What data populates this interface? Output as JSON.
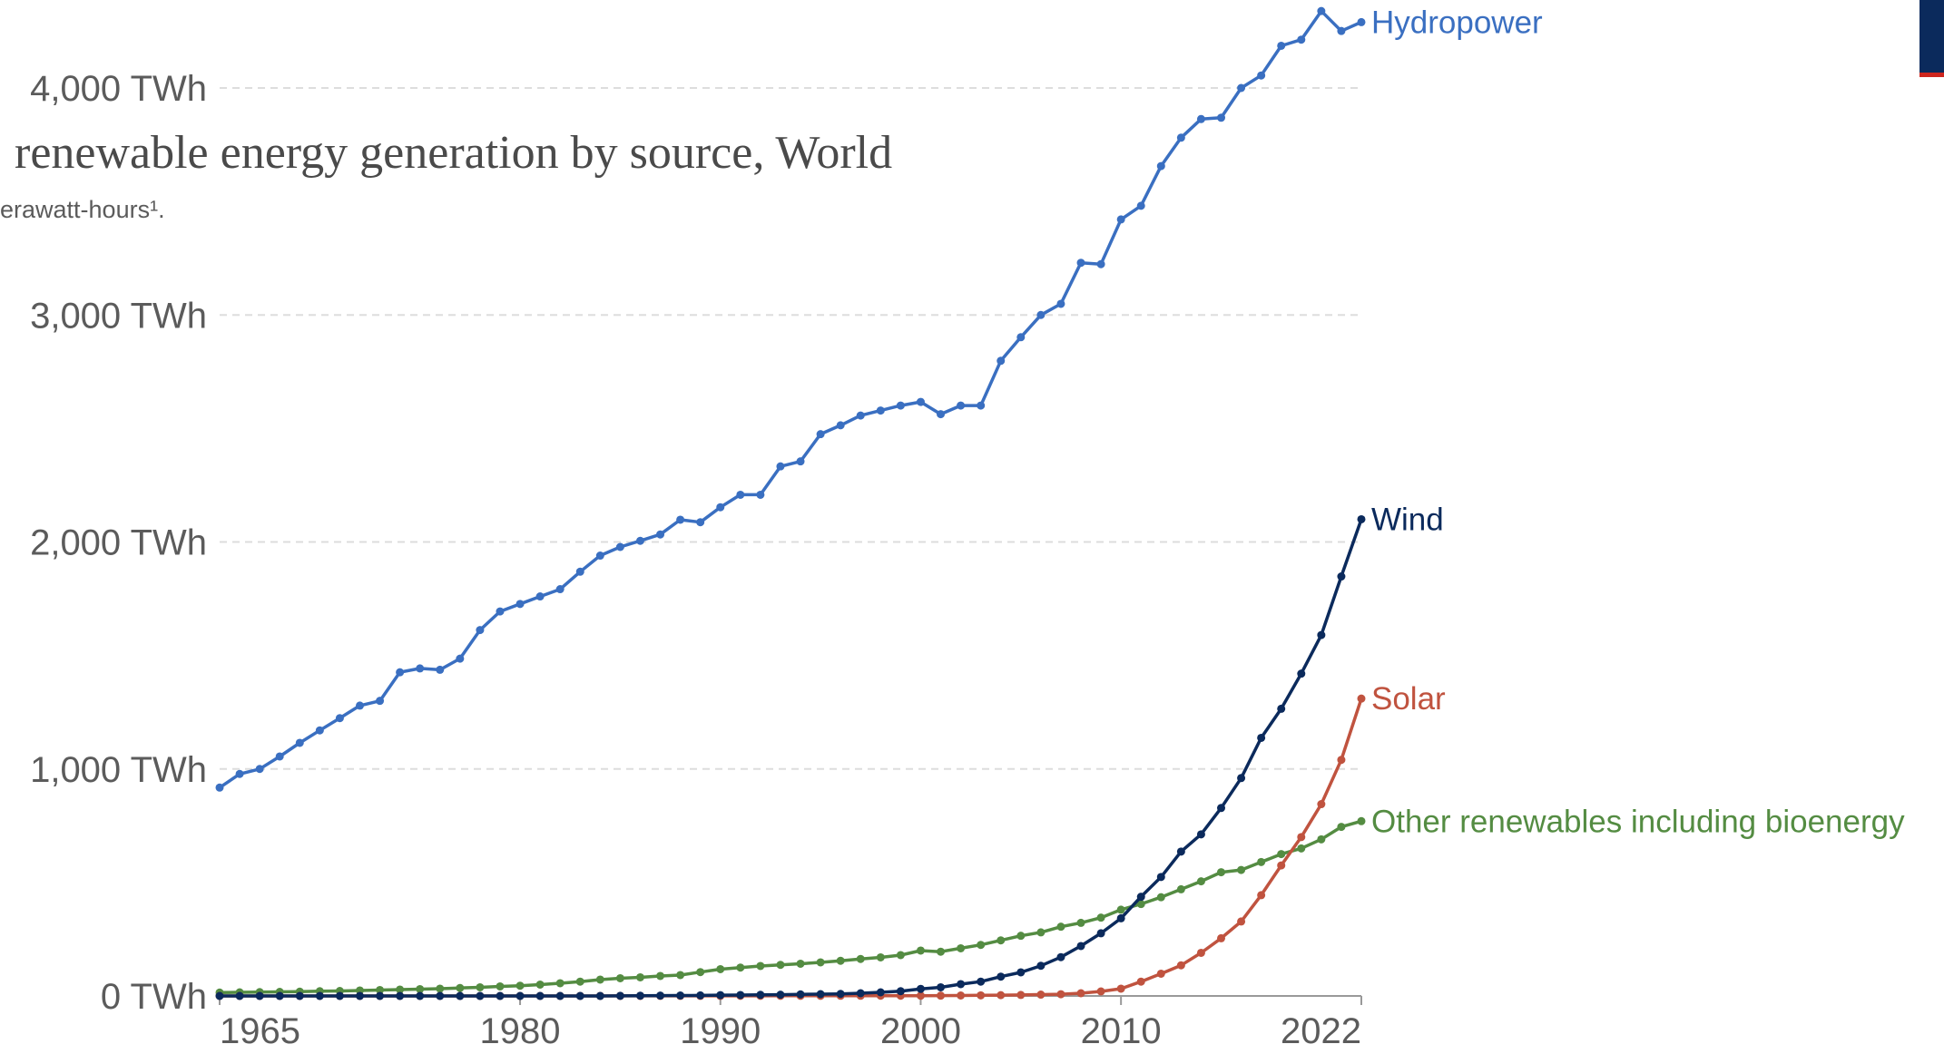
{
  "chart_data": {
    "type": "line",
    "title": "renewable energy generation by source, World",
    "subtitle": "erawatt-hours¹.",
    "x": [
      1965,
      1966,
      1967,
      1968,
      1969,
      1970,
      1971,
      1972,
      1973,
      1974,
      1975,
      1976,
      1977,
      1978,
      1979,
      1980,
      1981,
      1982,
      1983,
      1984,
      1985,
      1986,
      1987,
      1988,
      1989,
      1990,
      1991,
      1992,
      1993,
      1994,
      1995,
      1996,
      1997,
      1998,
      1999,
      2000,
      2001,
      2002,
      2003,
      2004,
      2005,
      2006,
      2007,
      2008,
      2009,
      2010,
      2011,
      2012,
      2013,
      2014,
      2015,
      2016,
      2017,
      2018,
      2019,
      2020,
      2021,
      2022
    ],
    "xlim": [
      1965,
      2022
    ],
    "xticks": [
      1965,
      1980,
      1990,
      2000,
      2010,
      2022
    ],
    "ylim": [
      0,
      4000
    ],
    "yticks": [
      {
        "value": 0,
        "label": "0 TWh"
      },
      {
        "value": 1000,
        "label": "1,000 TWh"
      },
      {
        "value": 2000,
        "label": "2,000 TWh"
      },
      {
        "value": 3000,
        "label": "3,000 TWh"
      },
      {
        "value": 4000,
        "label": "4,000 TWh"
      }
    ],
    "grid": true,
    "series": [
      {
        "name": "Hydropower",
        "color": "#3a6fc1",
        "values": [
          918,
          978,
          1000,
          1055,
          1115,
          1170,
          1224,
          1279,
          1300,
          1426,
          1443,
          1437,
          1486,
          1612,
          1694,
          1727,
          1760,
          1792,
          1869,
          1940,
          1978,
          2005,
          2033,
          2098,
          2087,
          2153,
          2208,
          2208,
          2333,
          2355,
          2475,
          2514,
          2557,
          2579,
          2601,
          2617,
          2563,
          2601,
          2601,
          2798,
          2902,
          3000,
          3049,
          3230,
          3224,
          3421,
          3481,
          3656,
          3781,
          3863,
          3869,
          4000,
          4055,
          4186,
          4213,
          4339,
          4251,
          4290
        ]
      },
      {
        "name": "Wind",
        "color": "#0b2a5c",
        "values": [
          0,
          0,
          0,
          0,
          0,
          0,
          0,
          0,
          0,
          0,
          0,
          0,
          0,
          0,
          0,
          0,
          0,
          0,
          0,
          0,
          0.5,
          1,
          1.5,
          2,
          2.5,
          3.6,
          4.1,
          4.8,
          5.5,
          7,
          8,
          9,
          12,
          16,
          21,
          31,
          38,
          52,
          63,
          85,
          104,
          133,
          171,
          220,
          276,
          342,
          437,
          524,
          636,
          712,
          828,
          960,
          1137,
          1265,
          1420,
          1590,
          1848,
          2100
        ]
      },
      {
        "name": "Solar",
        "color": "#c0533f",
        "values": [
          0,
          0,
          0,
          0,
          0,
          0,
          0,
          0,
          0,
          0,
          0,
          0,
          0,
          0,
          0,
          0,
          0,
          0,
          0.1,
          0.1,
          0.2,
          0.2,
          0.3,
          0.3,
          0.4,
          0.4,
          0.5,
          0.5,
          0.6,
          0.6,
          0.7,
          0.8,
          0.9,
          1,
          1,
          1.1,
          1.4,
          2,
          2.7,
          3.5,
          4.4,
          5.8,
          7.7,
          12,
          20,
          32,
          63,
          98,
          135,
          190,
          254,
          328,
          444,
          575,
          700,
          845,
          1040,
          1310
        ]
      },
      {
        "name": "Other renewables including bioenergy",
        "color": "#548c42",
        "values": [
          15,
          16,
          17,
          18,
          19,
          21,
          22,
          24,
          26,
          28,
          30,
          32,
          35,
          38,
          42,
          45,
          50,
          56,
          63,
          72,
          78,
          82,
          88,
          92,
          105,
          118,
          125,
          132,
          137,
          142,
          148,
          155,
          163,
          170,
          180,
          200,
          195,
          210,
          225,
          245,
          265,
          280,
          305,
          322,
          345,
          380,
          405,
          435,
          470,
          505,
          545,
          555,
          590,
          625,
          650,
          690,
          745,
          770
        ]
      }
    ]
  }
}
